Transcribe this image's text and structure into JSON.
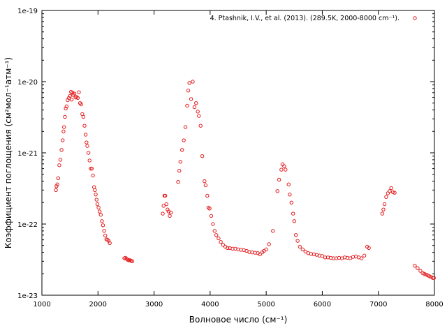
{
  "chart_data": {
    "type": "scatter",
    "title": "",
    "xlabel": "Волновое число (см⁻¹)",
    "ylabel": "Коэффициент поглощения (см²мол⁻¹атм⁻¹)",
    "xlim": [
      1000,
      8000
    ],
    "ylim": [
      1e-23,
      1e-19
    ],
    "yscale": "log",
    "x_ticks": [
      "1000",
      "2000",
      "3000",
      "4000",
      "5000",
      "6000",
      "7000",
      "8000"
    ],
    "y_ticks": [
      "1e-23",
      "1e-22",
      "1e-21",
      "1e-20",
      "1e-19"
    ],
    "grid": false,
    "legend_position": "top-right",
    "marker": "open-circle",
    "series": [
      {
        "name": "4. Ptashnik, I.V., et al. (2013). (289.5K, 2000-8000 cm⁻¹).",
        "color": "#e41a1c",
        "points": [
          [
            1250,
            3e-22
          ],
          [
            1260,
            3.4e-22
          ],
          [
            1275,
            3.6e-22
          ],
          [
            1290,
            4.4e-22
          ],
          [
            1310,
            6.7e-22
          ],
          [
            1330,
            8e-22
          ],
          [
            1350,
            1.1e-21
          ],
          [
            1370,
            1.5e-21
          ],
          [
            1385,
            2e-21
          ],
          [
            1395,
            2.3e-21
          ],
          [
            1410,
            3.2e-21
          ],
          [
            1425,
            4.2e-21
          ],
          [
            1440,
            4.5e-21
          ],
          [
            1460,
            5.5e-21
          ],
          [
            1480,
            5.9e-21
          ],
          [
            1500,
            6.3e-21
          ],
          [
            1520,
            7.2e-21
          ],
          [
            1530,
            5.6e-21
          ],
          [
            1545,
            7e-21
          ],
          [
            1560,
            6.5e-21
          ],
          [
            1580,
            6.8e-21
          ],
          [
            1600,
            6e-21
          ],
          [
            1620,
            6.1e-21
          ],
          [
            1640,
            5.9e-21
          ],
          [
            1660,
            7.1e-21
          ],
          [
            1680,
            5e-21
          ],
          [
            1700,
            4.8e-21
          ],
          [
            1720,
            3.5e-21
          ],
          [
            1740,
            3.2e-21
          ],
          [
            1760,
            2.4e-21
          ],
          [
            1780,
            1.8e-21
          ],
          [
            1795,
            1.4e-21
          ],
          [
            1810,
            1.25e-21
          ],
          [
            1830,
            1e-21
          ],
          [
            1850,
            7.8e-22
          ],
          [
            1870,
            6e-22
          ],
          [
            1890,
            6e-22
          ],
          [
            1910,
            4.8e-22
          ],
          [
            1930,
            3.3e-22
          ],
          [
            1945,
            3e-22
          ],
          [
            1960,
            2.6e-22
          ],
          [
            1975,
            2.2e-22
          ],
          [
            1990,
            1.9e-22
          ],
          [
            2010,
            1.7e-22
          ],
          [
            2030,
            1.5e-22
          ],
          [
            2050,
            1.35e-22
          ],
          [
            2070,
            1.1e-22
          ],
          [
            2090,
            9.6e-23
          ],
          [
            2110,
            8e-23
          ],
          [
            2130,
            6.9e-23
          ],
          [
            2150,
            6.1e-23
          ],
          [
            2170,
            6e-23
          ],
          [
            2190,
            5.8e-23
          ],
          [
            2210,
            5.4e-23
          ],
          [
            2470,
            3.3e-23
          ],
          [
            2490,
            3.35e-23
          ],
          [
            2510,
            3.25e-23
          ],
          [
            2530,
            3.15e-23
          ],
          [
            2550,
            3.1e-23
          ],
          [
            2570,
            3.1e-23
          ],
          [
            2590,
            3.05e-23
          ],
          [
            2610,
            3e-23
          ],
          [
            3155,
            1.4e-22
          ],
          [
            3170,
            1.8e-22
          ],
          [
            3185,
            2.5e-22
          ],
          [
            3200,
            2.5e-22
          ],
          [
            3220,
            1.9e-22
          ],
          [
            3240,
            1.6e-22
          ],
          [
            3260,
            1.5e-22
          ],
          [
            3280,
            1.3e-22
          ],
          [
            3300,
            1.45e-22
          ],
          [
            3430,
            3.9e-22
          ],
          [
            3450,
            5.6e-22
          ],
          [
            3470,
            7.5e-22
          ],
          [
            3500,
            1.1e-21
          ],
          [
            3530,
            1.5e-21
          ],
          [
            3560,
            2.3e-21
          ],
          [
            3590,
            4.6e-21
          ],
          [
            3610,
            7.5e-21
          ],
          [
            3630,
            9.6e-21
          ],
          [
            3660,
            5.7e-21
          ],
          [
            3690,
            1e-20
          ],
          [
            3720,
            4.4e-21
          ],
          [
            3750,
            5e-21
          ],
          [
            3780,
            3.8e-21
          ],
          [
            3800,
            3.3e-21
          ],
          [
            3830,
            2.4e-21
          ],
          [
            3860,
            9e-22
          ],
          [
            3900,
            4e-22
          ],
          [
            3920,
            3.5e-22
          ],
          [
            3950,
            2.5e-22
          ],
          [
            3970,
            1.7e-22
          ],
          [
            3990,
            1.65e-22
          ],
          [
            4020,
            1.3e-22
          ],
          [
            4050,
            1e-22
          ],
          [
            4080,
            8e-23
          ],
          [
            4110,
            7e-23
          ],
          [
            4150,
            6.3e-23
          ],
          [
            4190,
            5.6e-23
          ],
          [
            4230,
            5.1e-23
          ],
          [
            4270,
            4.8e-23
          ],
          [
            4310,
            4.6e-23
          ],
          [
            4350,
            4.6e-23
          ],
          [
            4400,
            4.5e-23
          ],
          [
            4450,
            4.5e-23
          ],
          [
            4500,
            4.4e-23
          ],
          [
            4550,
            4.35e-23
          ],
          [
            4600,
            4.3e-23
          ],
          [
            4650,
            4.2e-23
          ],
          [
            4700,
            4.05e-23
          ],
          [
            4750,
            4e-23
          ],
          [
            4800,
            3.95e-23
          ],
          [
            4850,
            3.9e-23
          ],
          [
            4890,
            3.75e-23
          ],
          [
            4930,
            4e-23
          ],
          [
            4960,
            4.2e-23
          ],
          [
            5000,
            4.4e-23
          ],
          [
            5050,
            5.2e-23
          ],
          [
            5120,
            8e-23
          ],
          [
            5200,
            2.9e-22
          ],
          [
            5230,
            4.2e-22
          ],
          [
            5270,
            5.8e-22
          ],
          [
            5290,
            6.9e-22
          ],
          [
            5320,
            6.5e-22
          ],
          [
            5345,
            5.8e-22
          ],
          [
            5400,
            3.6e-22
          ],
          [
            5420,
            2.6e-22
          ],
          [
            5450,
            2e-22
          ],
          [
            5480,
            1.4e-22
          ],
          [
            5500,
            1.1e-22
          ],
          [
            5530,
            7e-23
          ],
          [
            5560,
            5.8e-23
          ],
          [
            5600,
            4.8e-23
          ],
          [
            5650,
            4.4e-23
          ],
          [
            5700,
            4.1e-23
          ],
          [
            5750,
            3.9e-23
          ],
          [
            5800,
            3.8e-23
          ],
          [
            5850,
            3.75e-23
          ],
          [
            5900,
            3.7e-23
          ],
          [
            5950,
            3.6e-23
          ],
          [
            6000,
            3.55e-23
          ],
          [
            6050,
            3.4e-23
          ],
          [
            6100,
            3.4e-23
          ],
          [
            6150,
            3.35e-23
          ],
          [
            6200,
            3.3e-23
          ],
          [
            6250,
            3.3e-23
          ],
          [
            6300,
            3.35e-23
          ],
          [
            6350,
            3.3e-23
          ],
          [
            6400,
            3.4e-23
          ],
          [
            6450,
            3.35e-23
          ],
          [
            6500,
            3.3e-23
          ],
          [
            6550,
            3.45e-23
          ],
          [
            6600,
            3.5e-23
          ],
          [
            6650,
            3.4e-23
          ],
          [
            6700,
            3.3e-23
          ],
          [
            6750,
            3.6e-23
          ],
          [
            6800,
            4.8e-23
          ],
          [
            6830,
            4.6e-23
          ],
          [
            7070,
            1.4e-22
          ],
          [
            7090,
            1.6e-22
          ],
          [
            7110,
            1.9e-22
          ],
          [
            7140,
            2.4e-22
          ],
          [
            7170,
            2.7e-22
          ],
          [
            7200,
            2.9e-22
          ],
          [
            7230,
            3.2e-22
          ],
          [
            7260,
            2.8e-22
          ],
          [
            7290,
            2.75e-22
          ],
          [
            7650,
            2.6e-23
          ],
          [
            7700,
            2.4e-23
          ],
          [
            7750,
            2.2e-23
          ],
          [
            7790,
            2.05e-23
          ],
          [
            7820,
            2e-23
          ],
          [
            7850,
            1.95e-23
          ],
          [
            7880,
            1.9e-23
          ],
          [
            7910,
            1.85e-23
          ],
          [
            7940,
            1.8e-23
          ],
          [
            7970,
            1.75e-23
          ],
          [
            7990,
            1.75e-23
          ]
        ]
      }
    ]
  }
}
